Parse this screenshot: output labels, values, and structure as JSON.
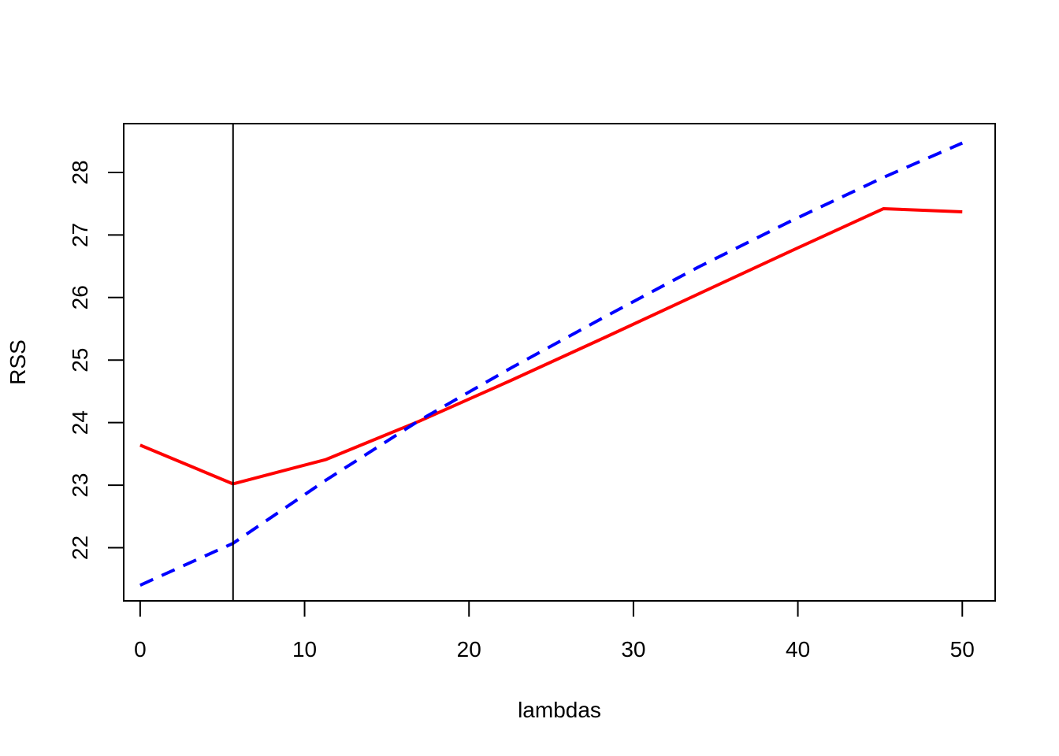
{
  "chart_data": {
    "type": "line",
    "title": "",
    "xlabel": "lambdas",
    "ylabel": "RSS",
    "xlim": [
      -1,
      52
    ],
    "ylim": [
      21.15,
      28.78
    ],
    "x_ticks": [
      0,
      10,
      20,
      30,
      40,
      50
    ],
    "y_ticks": [
      22,
      23,
      24,
      25,
      26,
      27,
      28
    ],
    "grid": false,
    "legend": "none",
    "vline": {
      "x": 5.65,
      "color": "#000000"
    },
    "series": [
      {
        "color": "#ff0000",
        "dash": "solid",
        "x": [
          0,
          5.65,
          11.3,
          16.95,
          22.6,
          28.25,
          33.9,
          39.55,
          45.2,
          50
        ],
        "y": [
          23.64,
          23.02,
          23.41,
          24.02,
          24.68,
          25.36,
          26.05,
          26.74,
          27.42,
          27.37
        ]
      },
      {
        "color": "#0000ff",
        "dash": "dashed",
        "x": [
          0,
          5.65,
          11.3,
          16.95,
          22.6,
          28.25,
          33.9,
          39.55,
          45.2,
          50
        ],
        "y": [
          21.4,
          22.07,
          23.08,
          24.03,
          24.88,
          25.69,
          26.48,
          27.22,
          27.92,
          28.47
        ]
      }
    ]
  }
}
